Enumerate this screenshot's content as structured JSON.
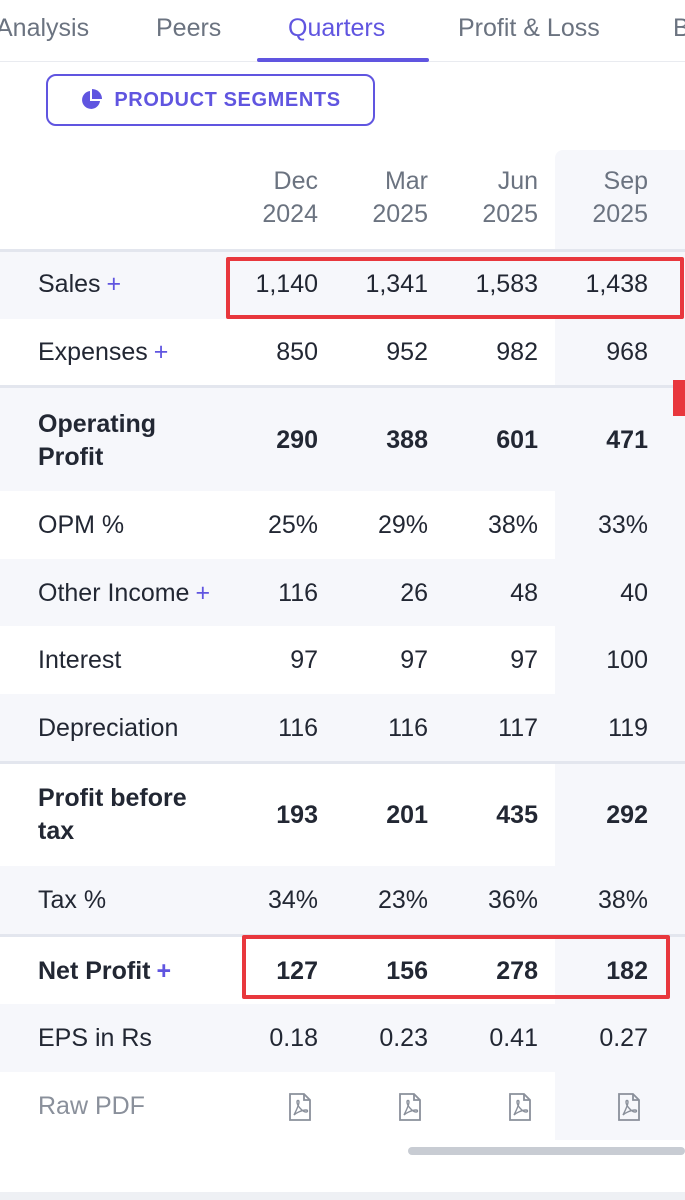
{
  "tabs": [
    {
      "label": "Analysis"
    },
    {
      "label": "Peers"
    },
    {
      "label": "Quarters"
    },
    {
      "label": "Profit & Loss"
    },
    {
      "label": "B"
    }
  ],
  "segments_button": {
    "label": "PRODUCT SEGMENTS",
    "icon": "pie-chart-icon"
  },
  "columns": [
    {
      "month": "Dec",
      "year": "2024"
    },
    {
      "month": "Mar",
      "year": "2025"
    },
    {
      "month": "Jun",
      "year": "2025"
    },
    {
      "month": "Sep",
      "year": "2025"
    }
  ],
  "rows": {
    "sales": {
      "label": "Sales",
      "plus": "+",
      "values": [
        "1,140",
        "1,341",
        "1,583",
        "1,438"
      ]
    },
    "expenses": {
      "label": "Expenses",
      "plus": "+",
      "values": [
        "850",
        "952",
        "982",
        "968"
      ]
    },
    "operating_profit": {
      "label_line1": "Operating",
      "label_line2": "Profit",
      "values": [
        "290",
        "388",
        "601",
        "471"
      ]
    },
    "opm": {
      "label": "OPM %",
      "values": [
        "25%",
        "29%",
        "38%",
        "33%"
      ]
    },
    "other_income": {
      "label": "Other Income",
      "plus": "+",
      "values": [
        "116",
        "26",
        "48",
        "40"
      ]
    },
    "interest": {
      "label": "Interest",
      "values": [
        "97",
        "97",
        "97",
        "100"
      ]
    },
    "depreciation": {
      "label": "Depreciation",
      "values": [
        "116",
        "116",
        "117",
        "119"
      ]
    },
    "pbt": {
      "label_line1": "Profit before",
      "label_line2": "tax",
      "values": [
        "193",
        "201",
        "435",
        "292"
      ]
    },
    "tax": {
      "label": "Tax %",
      "values": [
        "34%",
        "23%",
        "36%",
        "38%"
      ]
    },
    "net_profit": {
      "label": "Net Profit",
      "plus": "+",
      "values": [
        "127",
        "156",
        "278",
        "182"
      ]
    },
    "eps": {
      "label": "EPS in Rs",
      "values": [
        "0.18",
        "0.23",
        "0.41",
        "0.27"
      ]
    },
    "raw_pdf": {
      "label": "Raw PDF",
      "icon": "pdf-icon"
    }
  },
  "colors": {
    "accent": "#6055e0",
    "highlight": "#e8373d"
  }
}
